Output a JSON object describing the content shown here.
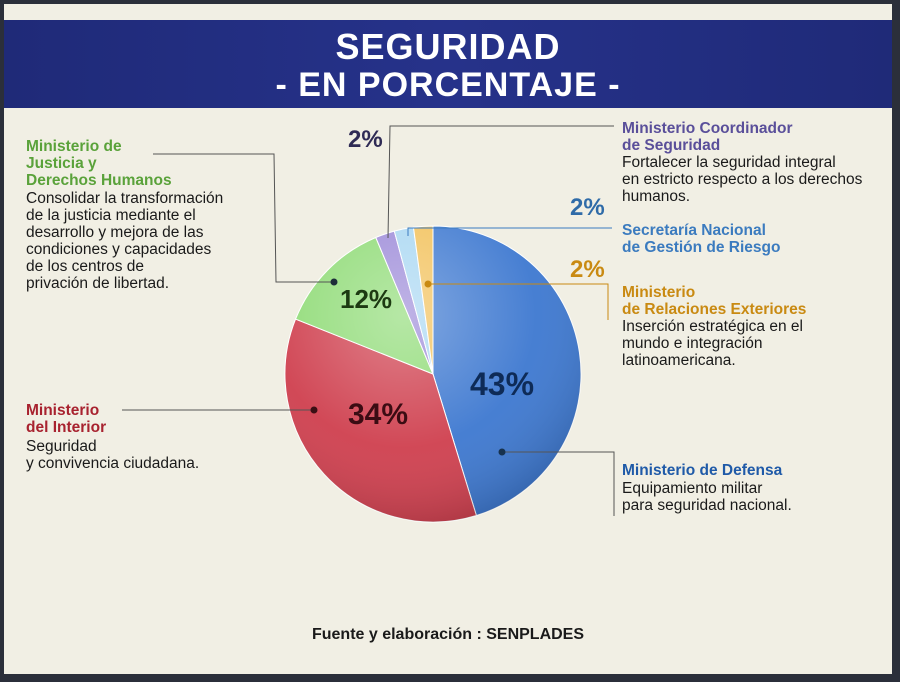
{
  "header": {
    "title": "SEGURIDAD",
    "subtitle": "- EN PORCENTAJE -"
  },
  "chart_data": {
    "type": "pie",
    "title": "SEGURIDAD - EN PORCENTAJE -",
    "slices": [
      {
        "label": "Ministerio de Defensa",
        "value": 43,
        "value_label": "43%",
        "color": "#3d78d0"
      },
      {
        "label": "Ministerio del Interior",
        "value": 34,
        "value_label": "34%",
        "color": "#cf3f4e"
      },
      {
        "label": "Ministerio de Justicia y Derechos Humanos",
        "value": 12,
        "value_label": "12%",
        "color": "#8fdb76"
      },
      {
        "label": "Ministerio Coordinador de Seguridad",
        "value": 2,
        "value_label": "2%",
        "color": "#9c8ad8"
      },
      {
        "label": "Secretaría Nacional de Gestión de Riesgo",
        "value": 2,
        "value_label": "2%",
        "color": "#a9d7f2"
      },
      {
        "label": "Ministerio de Relaciones Exteriores",
        "value": 2,
        "value_label": "2%",
        "color": "#f2c15a"
      }
    ]
  },
  "annotations": {
    "justicia": {
      "name_lines": [
        "Ministerio de",
        "Justicia y",
        "Derechos Humanos"
      ],
      "desc_lines": [
        "Consolidar  la transformación",
        "de la justicia mediante el",
        "desarrollo y mejora de las",
        "condiciones y  capacidades",
        "de los centros de",
        "privación de libertad."
      ],
      "color": "#5aa23a"
    },
    "interior": {
      "name_lines": [
        "Ministerio",
        "del Interior"
      ],
      "desc_lines": [
        "Seguridad",
        "y convivencia ciudadana."
      ],
      "color": "#a8222f"
    },
    "coordinador": {
      "name_lines": [
        "Ministerio Coordinador",
        "de Seguridad"
      ],
      "desc_lines": [
        "Fortalecer la seguridad integral",
        "en estricto respecto a los derechos",
        "humanos."
      ],
      "color": "#5a4f9a"
    },
    "riesgo": {
      "name_lines": [
        "Secretaría Nacional",
        "de Gestión de Riesgo"
      ],
      "color": "#3b7bbf"
    },
    "exteriores": {
      "name_lines": [
        "Ministerio",
        "de Relaciones Exteriores"
      ],
      "desc_lines": [
        "Inserción estratégica en el",
        "mundo e integración",
        "latinoamericana."
      ],
      "color": "#c98a12"
    },
    "defensa": {
      "name_lines": [
        "Ministerio de Defensa"
      ],
      "desc_lines": [
        "Equipamiento militar",
        "para seguridad nacional."
      ],
      "color": "#1f5aa8"
    }
  },
  "source": "Fuente y elaboración : SENPLADES"
}
